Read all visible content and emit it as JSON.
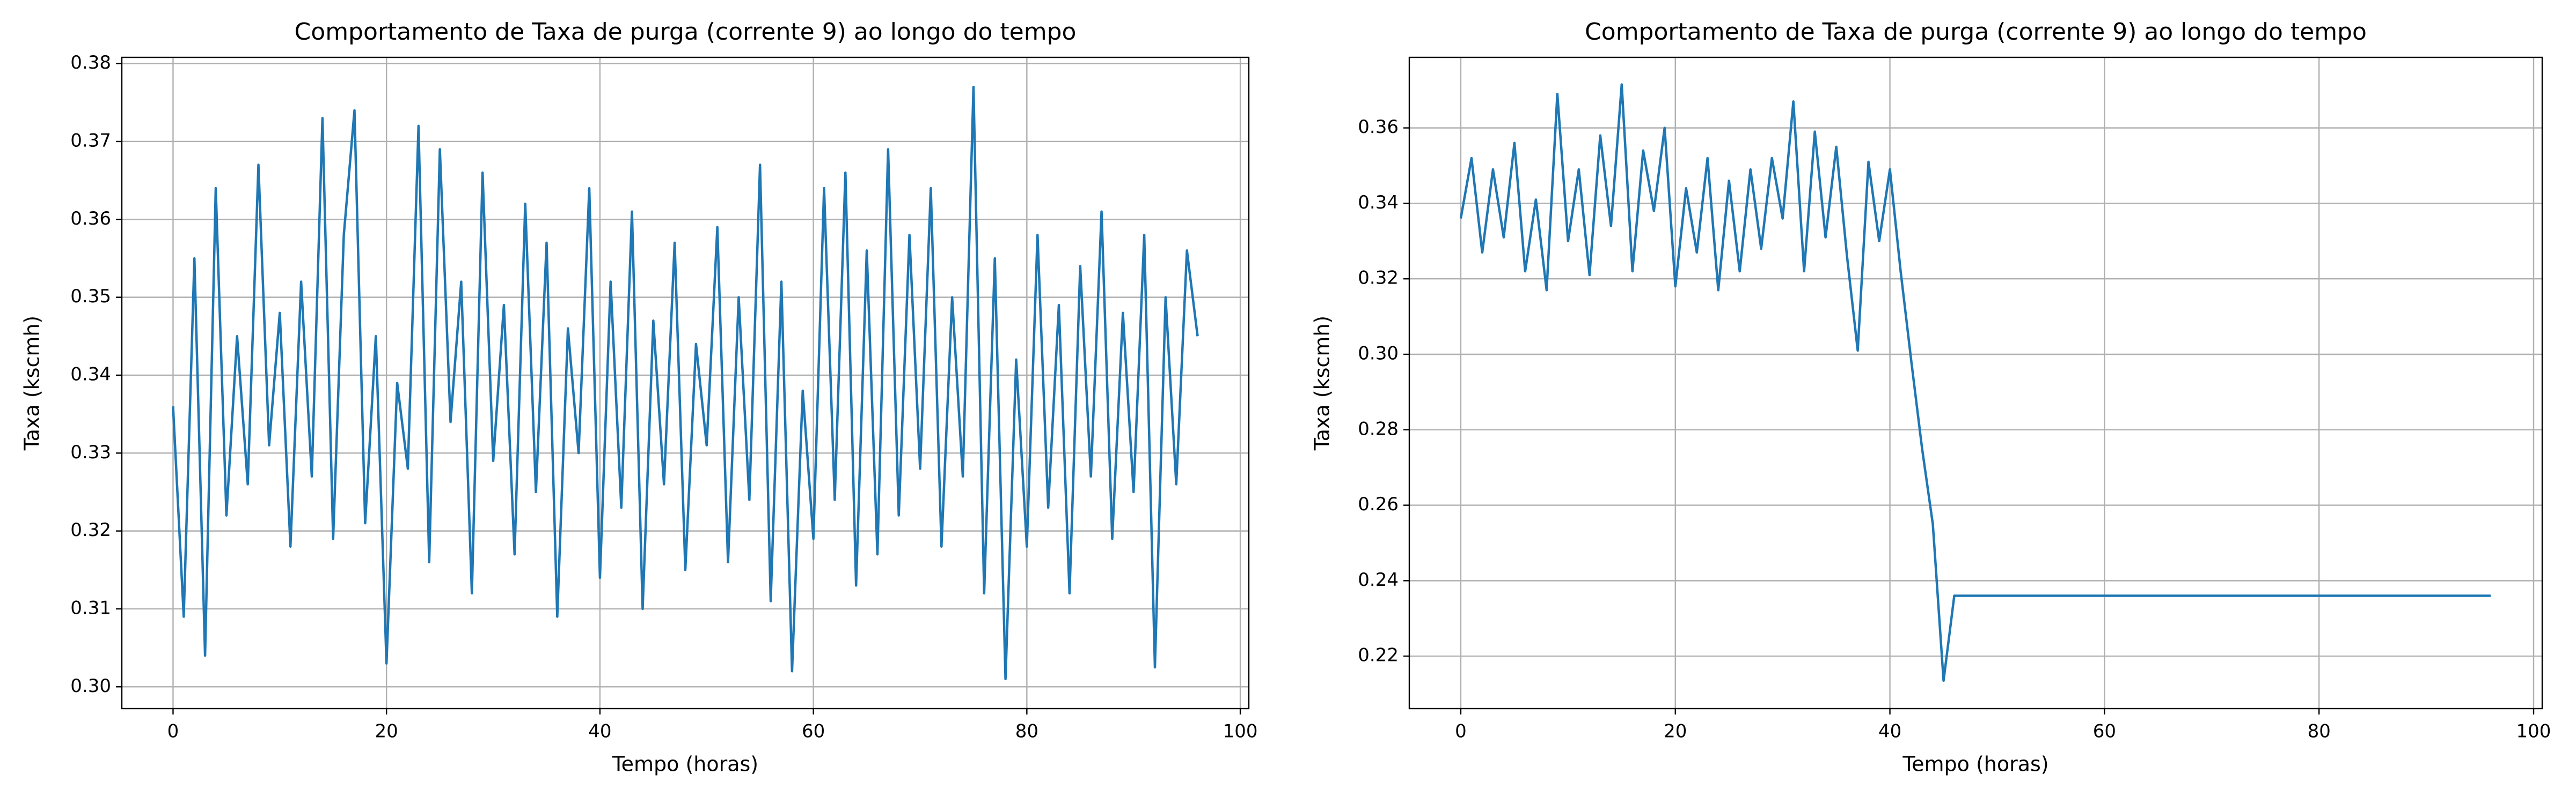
{
  "chart_data": [
    {
      "type": "line",
      "title": "Comportamento de Taxa de purga (corrente 9) ao longo do tempo",
      "xlabel": "Tempo (horas)",
      "ylabel": "Taxa (kscmh)",
      "x": [
        0,
        1,
        2,
        3,
        4,
        5,
        6,
        7,
        8,
        9,
        10,
        11,
        12,
        13,
        14,
        15,
        16,
        17,
        18,
        19,
        20,
        21,
        22,
        23,
        24,
        25,
        26,
        27,
        28,
        29,
        30,
        31,
        32,
        33,
        34,
        35,
        36,
        37,
        38,
        39,
        40,
        41,
        42,
        43,
        44,
        45,
        46,
        47,
        48,
        49,
        50,
        51,
        52,
        53,
        54,
        55,
        56,
        57,
        58,
        59,
        60,
        61,
        62,
        63,
        64,
        65,
        66,
        67,
        68,
        69,
        70,
        71,
        72,
        73,
        74,
        75,
        76,
        77,
        78,
        79,
        80,
        81,
        82,
        83,
        84,
        85,
        86,
        87,
        88,
        89,
        90,
        91,
        92,
        93,
        94,
        95,
        96
      ],
      "series": [
        {
          "name": "Taxa de purga (corrente 9)",
          "color": "#1f77b4",
          "values": [
            0.336,
            0.309,
            0.355,
            0.304,
            0.364,
            0.322,
            0.345,
            0.326,
            0.367,
            0.331,
            0.348,
            0.318,
            0.352,
            0.327,
            0.373,
            0.319,
            0.358,
            0.374,
            0.321,
            0.345,
            0.303,
            0.339,
            0.328,
            0.372,
            0.316,
            0.369,
            0.334,
            0.352,
            0.312,
            0.366,
            0.329,
            0.349,
            0.317,
            0.362,
            0.325,
            0.357,
            0.309,
            0.346,
            0.33,
            0.364,
            0.314,
            0.352,
            0.323,
            0.361,
            0.31,
            0.347,
            0.326,
            0.357,
            0.315,
            0.344,
            0.331,
            0.359,
            0.316,
            0.35,
            0.324,
            0.367,
            0.311,
            0.352,
            0.302,
            0.338,
            0.319,
            0.364,
            0.324,
            0.366,
            0.313,
            0.356,
            0.317,
            0.369,
            0.322,
            0.358,
            0.328,
            0.364,
            0.318,
            0.35,
            0.327,
            0.377,
            0.312,
            0.355,
            0.301,
            0.342,
            0.318,
            0.358,
            0.323,
            0.349,
            0.312,
            0.354,
            0.327,
            0.361,
            0.319,
            0.348,
            0.325,
            0.358,
            0.3025,
            0.35,
            0.326,
            0.356,
            0.345
          ]
        }
      ],
      "xlim": [
        -4.8,
        100.8
      ],
      "xticks": [
        0,
        20,
        40,
        60,
        80,
        100
      ],
      "ylim": [
        0.2972,
        0.3808
      ],
      "yticks": [
        {
          "value": 0.3,
          "label": "0.30"
        },
        0.31,
        0.32,
        0.33,
        0.34,
        0.35,
        0.36,
        0.37,
        0.38
      ],
      "grid": true
    },
    {
      "type": "line",
      "title": "Comportamento de Taxa de purga (corrente 9) ao longo do tempo",
      "xlabel": "Tempo (horas)",
      "ylabel": "Taxa (kscmh)",
      "x": [
        0,
        1,
        2,
        3,
        4,
        5,
        6,
        7,
        8,
        9,
        10,
        11,
        12,
        13,
        14,
        15,
        16,
        17,
        18,
        19,
        20,
        21,
        22,
        23,
        24,
        25,
        26,
        27,
        28,
        29,
        30,
        31,
        32,
        33,
        34,
        35,
        36,
        37,
        38,
        39,
        40,
        41,
        42,
        43,
        44,
        45,
        46,
        47,
        48,
        49,
        50,
        51,
        52,
        53,
        54,
        55,
        56,
        57,
        58,
        59,
        60,
        61,
        62,
        63,
        64,
        65,
        66,
        67,
        68,
        69,
        70,
        71,
        72,
        73,
        74,
        75,
        76,
        77,
        78,
        79,
        80,
        81,
        82,
        83,
        84,
        85,
        86,
        87,
        88,
        89,
        90,
        91,
        92,
        93,
        94,
        95,
        96
      ],
      "series": [
        {
          "name": "Taxa de purga (corrente 9)",
          "color": "#1f77b4",
          "values": [
            0.336,
            0.352,
            0.327,
            0.349,
            0.331,
            0.356,
            0.322,
            0.341,
            0.317,
            0.369,
            0.33,
            0.349,
            0.321,
            0.358,
            0.334,
            0.3715,
            0.322,
            0.354,
            0.338,
            0.36,
            0.318,
            0.344,
            0.327,
            0.352,
            0.317,
            0.346,
            0.322,
            0.349,
            0.328,
            0.352,
            0.336,
            0.367,
            0.322,
            0.359,
            0.331,
            0.355,
            0.326,
            0.301,
            0.351,
            0.33,
            0.349,
            0.322,
            0.298,
            0.275,
            0.255,
            0.2135,
            0.236,
            0.236,
            0.236,
            0.236,
            0.236,
            0.236,
            0.236,
            0.236,
            0.236,
            0.236,
            0.236,
            0.236,
            0.236,
            0.236,
            0.236,
            0.236,
            0.236,
            0.236,
            0.236,
            0.236,
            0.236,
            0.236,
            0.236,
            0.236,
            0.236,
            0.236,
            0.236,
            0.236,
            0.236,
            0.236,
            0.236,
            0.236,
            0.236,
            0.236,
            0.236,
            0.236,
            0.236,
            0.236,
            0.236,
            0.236,
            0.236,
            0.236,
            0.236,
            0.236,
            0.236,
            0.236,
            0.236,
            0.236,
            0.236,
            0.236,
            0.236
          ]
        }
      ],
      "xlim": [
        -4.8,
        100.8
      ],
      "xticks": [
        0,
        20,
        40,
        60,
        80,
        100
      ],
      "ylim": [
        0.2061,
        0.3787
      ],
      "yticks": [
        0.22,
        0.24,
        0.26,
        0.28,
        {
          "value": 0.3,
          "label": "0.30"
        },
        0.32,
        0.34,
        0.36
      ],
      "grid": true
    }
  ]
}
